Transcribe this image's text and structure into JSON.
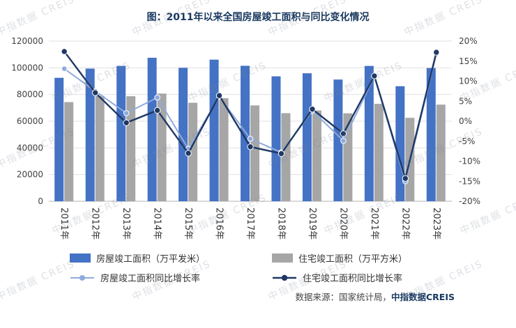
{
  "title": "图：2011年以来全国房屋竣工面积与同比变化情况",
  "watermark": "中指数据 CREIS",
  "footer": {
    "source_prefix": "数据来源：国家统计局，",
    "source_brand": "中指数据CREIS"
  },
  "chart_data": {
    "type": "combo-bar-line",
    "title": "图：2011年以来全国房屋竣工面积与同比变化情况",
    "categories": [
      "2011年",
      "2012年",
      "2013年",
      "2014年",
      "2015年",
      "2016年",
      "2017年",
      "2018年",
      "2019年",
      "2020年",
      "2021年",
      "2022年",
      "2023年"
    ],
    "bar_series": [
      {
        "name": "房屋竣工面积（万平发米）",
        "color": "#4472c4",
        "axis": "left",
        "values": [
          92500,
          99400,
          101400,
          107500,
          100000,
          106100,
          101500,
          93600,
          95900,
          91200,
          101400,
          86200,
          99800
        ]
      },
      {
        "name": "住宅竣工面积（万平方米）",
        "color": "#a6a6a6",
        "axis": "left",
        "values": [
          74300,
          79000,
          78700,
          80700,
          73800,
          77200,
          71800,
          66000,
          68000,
          65900,
          73000,
          62500,
          72400
        ]
      }
    ],
    "line_series": [
      {
        "name": "房屋竣工面积同比增长率",
        "color": "#8faadc",
        "axis": "right",
        "values": [
          13.1,
          7.5,
          2.0,
          5.9,
          -6.9,
          6.1,
          -4.4,
          -7.8,
          2.6,
          -4.9,
          11.2,
          -15.0,
          16.8
        ]
      },
      {
        "name": "住宅竣工面积同比增长率",
        "color": "#1f3864",
        "axis": "right",
        "values": [
          17.4,
          7.1,
          -0.4,
          2.7,
          -8.0,
          6.4,
          -6.4,
          -8.1,
          3.0,
          -3.1,
          11.3,
          -14.3,
          17.2
        ]
      }
    ],
    "left_axis": {
      "min": 0,
      "max": 120000,
      "step": 20000,
      "ticks": [
        0,
        20000,
        40000,
        60000,
        80000,
        100000,
        120000
      ]
    },
    "right_axis": {
      "min": -20,
      "max": 20,
      "step": 5,
      "ticks": [
        -20,
        -15,
        -10,
        -5,
        0,
        5,
        10,
        15,
        20
      ],
      "suffix": "%"
    },
    "grid": true,
    "legend_position": "bottom"
  }
}
